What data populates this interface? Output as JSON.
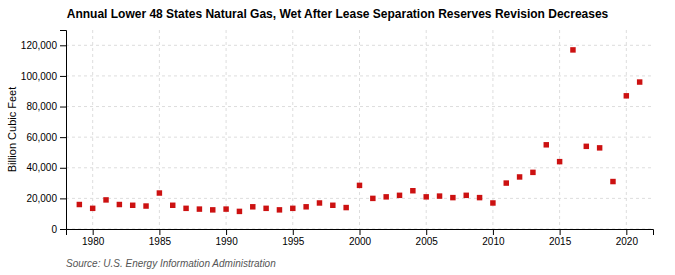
{
  "chart_data": {
    "type": "scatter",
    "title": "Annual Lower 48 States Natural Gas, Wet After Lease Separation Reserves Revision Decreases",
    "ylabel": "Billion Cubic Feet",
    "source": "Source: U.S. Energy Information Administration",
    "x": [
      1979,
      1980,
      1981,
      1982,
      1983,
      1984,
      1985,
      1986,
      1987,
      1988,
      1989,
      1990,
      1991,
      1992,
      1993,
      1994,
      1995,
      1996,
      1997,
      1998,
      1999,
      2000,
      2001,
      2002,
      2003,
      2004,
      2005,
      2006,
      2007,
      2008,
      2009,
      2010,
      2011,
      2012,
      2013,
      2014,
      2015,
      2016,
      2017,
      2018,
      2019,
      2020,
      2021
    ],
    "values": [
      16000,
      13500,
      19000,
      16000,
      15500,
      15000,
      23500,
      15500,
      13500,
      13000,
      12500,
      13000,
      11500,
      14500,
      13500,
      12500,
      13500,
      14500,
      17000,
      15500,
      14000,
      28500,
      20000,
      21000,
      22000,
      25000,
      21000,
      21500,
      20500,
      22000,
      20500,
      17000,
      30000,
      34000,
      37000,
      55000,
      44000,
      117000,
      54000,
      53000,
      31000,
      87000,
      96000
    ],
    "color": "#cc1111",
    "marker": "square",
    "xlim": [
      1978,
      2022
    ],
    "ylim": [
      0,
      130000
    ],
    "xticks": [
      1980,
      1985,
      1990,
      1995,
      2000,
      2005,
      2010,
      2015,
      2020
    ],
    "yticks": [
      0,
      {
        "value": 20000,
        "label": "20,000"
      },
      {
        "value": 40000,
        "label": "40,000"
      },
      {
        "value": 60000,
        "label": "60,000"
      },
      {
        "value": 80000,
        "label": "80,000"
      },
      {
        "value": 100000,
        "label": "100,000"
      },
      {
        "value": 120000,
        "label": "120,000"
      }
    ],
    "grid": true
  }
}
